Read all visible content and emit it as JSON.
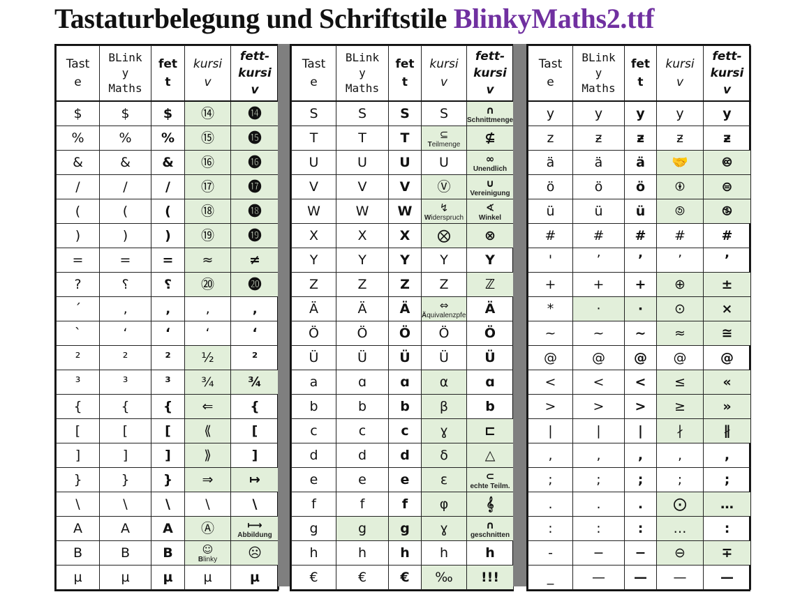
{
  "title": {
    "prefix": "Tastaturbelegung und Schriftstile ",
    "font_name": "BlinkyMaths2.ttf",
    "accent_color": "#7030a0"
  },
  "colors": {
    "highlight": "#e2efda",
    "separator": "#7f7f7f",
    "grid": "#222222"
  },
  "headers": {
    "taste": "Taste",
    "blinky": "BLinkyMaths",
    "fett": "fett",
    "kursiv": "kursiv",
    "fettkursiv": "fett-kursiv"
  },
  "blocks": [
    {
      "rows": [
        {
          "cells": [
            "$",
            "$",
            "$",
            "⑭",
            "⓮"
          ],
          "hl": [
            0,
            0,
            0,
            1,
            1
          ]
        },
        {
          "cells": [
            "%",
            "%",
            "%",
            "⑮",
            "⓯"
          ],
          "hl": [
            0,
            0,
            0,
            1,
            1
          ]
        },
        {
          "cells": [
            "&",
            "&",
            "&",
            "⑯",
            "⓰"
          ],
          "hl": [
            0,
            0,
            0,
            1,
            1
          ]
        },
        {
          "cells": [
            "/",
            "/",
            "/",
            "⑰",
            "⓱"
          ],
          "hl": [
            0,
            0,
            0,
            1,
            1
          ]
        },
        {
          "cells": [
            "(",
            "(",
            "(",
            "⑱",
            "⓲"
          ],
          "hl": [
            0,
            0,
            0,
            1,
            1
          ]
        },
        {
          "cells": [
            ")",
            ")",
            ")",
            "⑲",
            "⓳"
          ],
          "hl": [
            0,
            0,
            0,
            1,
            1
          ]
        },
        {
          "cells": [
            "=",
            "=",
            "=",
            "≈",
            "≠"
          ],
          "hl": [
            0,
            0,
            0,
            1,
            1
          ]
        },
        {
          "cells": [
            "?",
            "⸮",
            "⸮",
            "⑳",
            "⓴"
          ],
          "hl": [
            0,
            0,
            0,
            1,
            1
          ]
        },
        {
          "cells": [
            "´",
            "‚",
            "‚",
            "‚",
            "‚"
          ],
          "hl": [
            0,
            0,
            0,
            0,
            0
          ]
        },
        {
          "cells": [
            "`",
            "ʻ",
            "ʻ",
            "ʻ",
            "ʻ"
          ],
          "hl": [
            0,
            0,
            0,
            0,
            0
          ]
        },
        {
          "cells": [
            "²",
            "²",
            "²",
            "½",
            "²"
          ],
          "hl": [
            0,
            0,
            0,
            1,
            0
          ]
        },
        {
          "cells": [
            "³",
            "³",
            "³",
            "¾",
            "¾"
          ],
          "hl": [
            0,
            0,
            0,
            1,
            1
          ]
        },
        {
          "cells": [
            "{",
            "{",
            "{",
            "⇐",
            "{"
          ],
          "hl": [
            0,
            0,
            0,
            1,
            0
          ]
        },
        {
          "cells": [
            "[",
            "[",
            "[",
            "⟪",
            "["
          ],
          "hl": [
            0,
            0,
            0,
            1,
            0
          ]
        },
        {
          "cells": [
            "]",
            "]",
            "]",
            "⟫",
            "]"
          ],
          "hl": [
            0,
            0,
            0,
            1,
            0
          ]
        },
        {
          "cells": [
            "}",
            "}",
            "}",
            "⇒",
            "↦"
          ],
          "hl": [
            0,
            0,
            0,
            1,
            1
          ]
        },
        {
          "cells": [
            "\\",
            "\\",
            "\\",
            "\\",
            "\\"
          ],
          "hl": [
            0,
            0,
            0,
            0,
            0
          ]
        },
        {
          "cells": [
            "A",
            "A",
            "A",
            "Ⓐ",
            "⟼"
          ],
          "hl": [
            0,
            0,
            0,
            1,
            1
          ],
          "notes": [
            "",
            "",
            "",
            "",
            "Abbildung"
          ]
        },
        {
          "cells": [
            "B",
            "B",
            "B",
            "☺",
            "☹"
          ],
          "hl": [
            0,
            0,
            0,
            1,
            1
          ],
          "notes": [
            "",
            "",
            "",
            "Blinky",
            ""
          ]
        },
        {
          "cells": [
            "µ",
            "µ",
            "µ",
            "µ",
            "µ"
          ],
          "hl": [
            0,
            0,
            0,
            0,
            0
          ]
        }
      ]
    },
    {
      "rows": [
        {
          "cells": [
            "S",
            "S",
            "S",
            "S",
            "∩"
          ],
          "hl": [
            0,
            0,
            0,
            0,
            1
          ],
          "notes": [
            "",
            "",
            "",
            "",
            "Schnittmenge"
          ]
        },
        {
          "cells": [
            "T",
            "T",
            "T",
            "⊆",
            "⊈"
          ],
          "hl": [
            0,
            0,
            0,
            1,
            1
          ],
          "notes": [
            "",
            "",
            "",
            "Teilmenge",
            ""
          ]
        },
        {
          "cells": [
            "U",
            "U",
            "U",
            "U",
            "∞"
          ],
          "hl": [
            0,
            0,
            0,
            0,
            1
          ],
          "notes": [
            "",
            "",
            "",
            "",
            "Unendlich"
          ]
        },
        {
          "cells": [
            "V",
            "V",
            "V",
            "Ⓥ",
            "∪"
          ],
          "hl": [
            0,
            0,
            0,
            1,
            1
          ],
          "notes": [
            "",
            "",
            "",
            "",
            "Vereinigung"
          ]
        },
        {
          "cells": [
            "W",
            "W",
            "W",
            "↯",
            "∢"
          ],
          "hl": [
            0,
            0,
            0,
            1,
            1
          ],
          "notes": [
            "",
            "",
            "",
            "Widerspruch",
            "Winkel"
          ]
        },
        {
          "cells": [
            "X",
            "X",
            "X",
            "⨂",
            "⊗"
          ],
          "hl": [
            0,
            0,
            0,
            1,
            1
          ]
        },
        {
          "cells": [
            "Y",
            "Y",
            "Y",
            "Y",
            "Y"
          ],
          "hl": [
            0,
            0,
            0,
            0,
            0
          ]
        },
        {
          "cells": [
            "Z",
            "Z",
            "Z",
            "Z",
            "ℤ"
          ],
          "hl": [
            0,
            0,
            0,
            0,
            1
          ]
        },
        {
          "cells": [
            "Ä",
            "Ä",
            "Ä",
            "⇔",
            "Ä"
          ],
          "hl": [
            0,
            0,
            0,
            1,
            0
          ],
          "notes": [
            "",
            "",
            "",
            "Äquivalenzpfeil",
            ""
          ]
        },
        {
          "cells": [
            "Ö",
            "Ö",
            "Ö",
            "Ö",
            "Ö"
          ],
          "hl": [
            0,
            0,
            0,
            0,
            0
          ]
        },
        {
          "cells": [
            "Ü",
            "Ü",
            "Ü",
            "Ü",
            "Ü"
          ],
          "hl": [
            0,
            0,
            0,
            0,
            0
          ]
        },
        {
          "cells": [
            "a",
            "ɑ",
            "ɑ",
            "α",
            "ɑ"
          ],
          "hl": [
            0,
            0,
            0,
            1,
            0
          ]
        },
        {
          "cells": [
            "b",
            "b",
            "b",
            "β",
            "b"
          ],
          "hl": [
            0,
            0,
            0,
            1,
            0
          ]
        },
        {
          "cells": [
            "c",
            "c",
            "c",
            "ɣ",
            "⊏"
          ],
          "hl": [
            0,
            0,
            0,
            1,
            1
          ]
        },
        {
          "cells": [
            "d",
            "d",
            "d",
            "δ",
            "△"
          ],
          "hl": [
            0,
            0,
            0,
            1,
            1
          ]
        },
        {
          "cells": [
            "e",
            "e",
            "e",
            "ε",
            "⊂"
          ],
          "hl": [
            0,
            0,
            0,
            1,
            1
          ],
          "notes": [
            "",
            "",
            "",
            "",
            "echte Teilm."
          ]
        },
        {
          "cells": [
            "f",
            "f",
            "f",
            "φ",
            "𝄞"
          ],
          "hl": [
            0,
            0,
            0,
            1,
            1
          ]
        },
        {
          "cells": [
            "g",
            "g",
            "g",
            "ɣ",
            "∩"
          ],
          "hl": [
            0,
            1,
            1,
            1,
            1
          ],
          "notes": [
            "",
            "",
            "",
            "",
            "geschnitten"
          ]
        },
        {
          "cells": [
            "h",
            "h",
            "h",
            "h",
            "h"
          ],
          "hl": [
            0,
            0,
            0,
            0,
            0
          ]
        },
        {
          "cells": [
            "€",
            "€",
            "€",
            "‰",
            "!!!"
          ],
          "hl": [
            0,
            0,
            0,
            1,
            1
          ]
        }
      ]
    },
    {
      "rows": [
        {
          "cells": [
            "y",
            "y",
            "y",
            "y",
            "y"
          ],
          "hl": [
            0,
            0,
            0,
            0,
            0
          ]
        },
        {
          "cells": [
            "z",
            "ƶ",
            "ƶ",
            "ƶ",
            "ƶ"
          ],
          "hl": [
            0,
            0,
            0,
            0,
            0
          ]
        },
        {
          "cells": [
            "ä",
            "ä",
            "ä",
            "🤝",
            "🅭"
          ],
          "hl": [
            0,
            0,
            0,
            1,
            1
          ]
        },
        {
          "cells": [
            "ö",
            "ö",
            "ö",
            "🅯",
            "⊜"
          ],
          "hl": [
            0,
            0,
            0,
            1,
            1
          ]
        },
        {
          "cells": [
            "ü",
            "ü",
            "ü",
            "🄎",
            "🄏"
          ],
          "hl": [
            0,
            0,
            0,
            1,
            1
          ]
        },
        {
          "cells": [
            "#",
            "#",
            "#",
            "#",
            "#"
          ],
          "hl": [
            0,
            0,
            0,
            0,
            0
          ]
        },
        {
          "cells": [
            "'",
            "ʼ",
            "ʼ",
            "ʼ",
            "ʼ"
          ],
          "hl": [
            0,
            0,
            0,
            0,
            0
          ]
        },
        {
          "cells": [
            "+",
            "+",
            "+",
            "⊕",
            "±"
          ],
          "hl": [
            0,
            0,
            0,
            1,
            1
          ]
        },
        {
          "cells": [
            "*",
            "·",
            "·",
            "⊙",
            "×"
          ],
          "hl": [
            0,
            1,
            1,
            1,
            1
          ]
        },
        {
          "cells": [
            "~",
            "~",
            "~",
            "≈",
            "≅"
          ],
          "hl": [
            0,
            0,
            0,
            1,
            1
          ]
        },
        {
          "cells": [
            "@",
            "@",
            "@",
            "@",
            "@"
          ],
          "hl": [
            0,
            0,
            0,
            0,
            0
          ]
        },
        {
          "cells": [
            "<",
            "<",
            "<",
            "≤",
            "«"
          ],
          "hl": [
            0,
            0,
            0,
            1,
            1
          ]
        },
        {
          "cells": [
            ">",
            ">",
            ">",
            "≥",
            "»"
          ],
          "hl": [
            0,
            0,
            0,
            1,
            1
          ]
        },
        {
          "cells": [
            "|",
            "|",
            "|",
            "∤",
            "∦"
          ],
          "hl": [
            0,
            0,
            0,
            1,
            1
          ]
        },
        {
          "cells": [
            ",",
            ",",
            ",",
            ",",
            ","
          ],
          "hl": [
            0,
            0,
            0,
            0,
            0
          ]
        },
        {
          "cells": [
            ";",
            ";",
            ";",
            ";",
            ";"
          ],
          "hl": [
            0,
            0,
            0,
            0,
            0
          ]
        },
        {
          "cells": [
            ".",
            ".",
            ".",
            "⨀",
            "…"
          ],
          "hl": [
            0,
            0,
            0,
            1,
            1
          ]
        },
        {
          "cells": [
            ":",
            ":",
            ":",
            "…",
            ":"
          ],
          "hl": [
            0,
            0,
            0,
            1,
            0
          ]
        },
        {
          "cells": [
            "-",
            "−",
            "−",
            "⊖",
            "∓"
          ],
          "hl": [
            0,
            0,
            0,
            1,
            1
          ]
        },
        {
          "cells": [
            "_",
            "—",
            "—",
            "—",
            "—"
          ],
          "hl": [
            0,
            0,
            0,
            0,
            0
          ]
        }
      ]
    }
  ]
}
